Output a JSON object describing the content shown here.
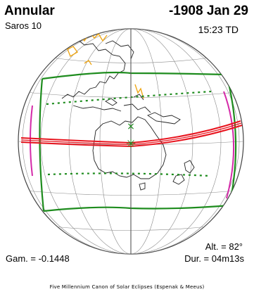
{
  "header": {
    "eclipse_type": "Annular",
    "saros": "Saros 10",
    "date": "-1908 Jan 29",
    "time": "15:23 TD"
  },
  "footer": {
    "altitude": "Alt. = 82°",
    "gamma": "Gam. = -0.1448",
    "duration": "Dur. = 04m13s",
    "credit": "Five Millennium Canon of Solar Eclipses (Espenak & Meeus)"
  },
  "colors": {
    "central_path": "#e8141e",
    "penumbra_limits": "#1e8c1e",
    "rise_set_curves": "#d42aa8",
    "polar_ice": "#f0a818",
    "graticule": "#8a8a8a",
    "coastline": "#222222"
  },
  "markers": {
    "greatest_eclipse_symbol": "✳",
    "sub_solar_symbol": "×"
  }
}
